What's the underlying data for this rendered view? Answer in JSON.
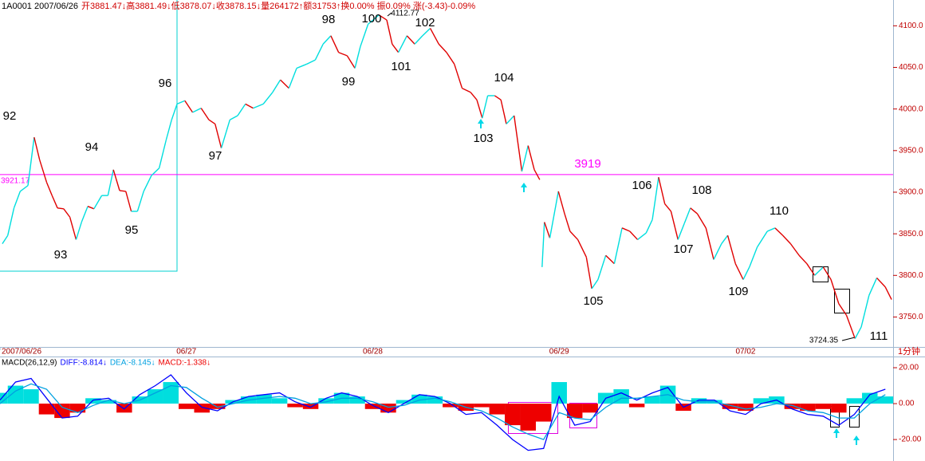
{
  "chart_data": [
    {
      "type": "line",
      "title": [
        "1A0001 2007/06/26",
        "开3881.47↓高3881.49↓低3878.07↓收3878.15↓量264172↑额31753↑换0.00%  振0.09%  涨(-3.43)-0.09%"
      ],
      "x": [
        3,
        10,
        18,
        26,
        36,
        44,
        51,
        60,
        67,
        74,
        82,
        90,
        98,
        105,
        113,
        121,
        131,
        139,
        146,
        154,
        162,
        169,
        177,
        185,
        195,
        205,
        214,
        221,
        228,
        238,
        248,
        259,
        269,
        277,
        285,
        296,
        306,
        316,
        326,
        339,
        351,
        361,
        372,
        382,
        395,
        406,
        416,
        426,
        436,
        447,
        457,
        464,
        474,
        488,
        498,
        505,
        513,
        524,
        534,
        544,
        554,
        565,
        575,
        585,
        595,
        606,
        614,
        621,
        628,
        637,
        645,
        652,
        662,
        672,
        680,
        688,
        695,
        697,
        698,
        701,
        708,
        719,
        727,
        734,
        744,
        755,
        762,
        770,
        780,
        791,
        801,
        811,
        821,
        832,
        840,
        848,
        856,
        864,
        873,
        881,
        889,
        898,
        909,
        919,
        929,
        937,
        947,
        957,
        965,
        975,
        988,
        998,
        1008,
        1018,
        1029,
        1039,
        1049,
        1060,
        1070,
        1080,
        1090,
        1101,
        1109,
        1119,
        1129,
        1140,
        1148
      ],
      "values": [
        3838,
        3848,
        3881,
        3901,
        3908,
        3966,
        3939,
        3912,
        3896,
        3881,
        3880,
        3870,
        3843,
        3864,
        3883,
        3880,
        3896,
        3896,
        3927,
        3902,
        3901,
        3877,
        3877,
        3901,
        3920,
        3929,
        3963,
        3987,
        4006,
        4010,
        3996,
        4001,
        3987,
        3982,
        3953,
        3987,
        3992,
        4006,
        4001,
        4006,
        4020,
        4035,
        4025,
        4049,
        4054,
        4059,
        4078,
        4088,
        4068,
        4064,
        4049,
        4075,
        4102,
        4113,
        4107,
        4078,
        4068,
        4088,
        4078,
        4088,
        4097,
        4078,
        4068,
        4054,
        4025,
        4020,
        4011,
        3989,
        4016,
        4016,
        4011,
        3982,
        3992,
        3925,
        3956,
        3927,
        3915,
        null,
        3810,
        3864,
        3845,
        3901,
        3874,
        3853,
        3843,
        3822,
        3784,
        3795,
        3824,
        3814,
        3857,
        3853,
        3843,
        3851,
        3867,
        3918,
        3886,
        3877,
        3843,
        3862,
        3881,
        3874,
        3857,
        3819,
        3838,
        3848,
        3814,
        3795,
        3810,
        3834,
        3853,
        3857,
        3848,
        3838,
        3824,
        3814,
        3800,
        3810,
        3795,
        3766,
        3752,
        3724,
        3738,
        3776,
        3797,
        3786,
        3771
      ],
      "up_color": "#00dede",
      "down_color": "#e00000",
      "xlim": [
        0,
        1150
      ],
      "xticks": [
        {
          "value": 0,
          "label": "2007/06/26"
        },
        {
          "value": 240,
          "label": "06/27"
        },
        {
          "value": 480,
          "label": "06/28"
        },
        {
          "value": 720,
          "label": "06/29"
        },
        {
          "value": 960,
          "label": "07/02"
        }
      ],
      "ylim": [
        3714,
        4131
      ],
      "yticks": [
        {
          "value": 3750,
          "label": "3750.0"
        },
        {
          "value": 3800,
          "label": "3800.0"
        },
        {
          "value": 3850,
          "label": "3850.0"
        },
        {
          "value": 3900,
          "label": "3900.0"
        },
        {
          "value": 3950,
          "label": "3950.0"
        },
        {
          "value": 4000,
          "label": "4000.0"
        },
        {
          "value": 4050,
          "label": "4050.0"
        },
        {
          "value": 4100,
          "label": "4100.0"
        }
      ],
      "hline": {
        "value": 3921.17,
        "label": "3921.17",
        "color": "#ff00ff"
      },
      "annotations": [
        "92",
        "93",
        "94",
        "95",
        "96",
        "97",
        "98",
        "99",
        "100",
        "101",
        "102",
        "103",
        "104",
        "105",
        "106",
        "107",
        "108",
        "109",
        "110",
        "111",
        "4112.77",
        "3724.35",
        "3919"
      ],
      "period": "1分钟"
    },
    {
      "type": "macd",
      "title": "MACD(26,12,9)",
      "x": [
        0,
        20,
        40,
        60,
        80,
        100,
        120,
        140,
        160,
        180,
        200,
        220,
        240,
        260,
        280,
        300,
        320,
        340,
        360,
        380,
        400,
        420,
        440,
        460,
        480,
        500,
        520,
        540,
        560,
        580,
        600,
        620,
        640,
        660,
        680,
        700,
        720,
        740,
        760,
        780,
        800,
        820,
        840,
        860,
        880,
        900,
        920,
        940,
        960,
        980,
        1000,
        1020,
        1040,
        1060,
        1080,
        1100,
        1120,
        1140
      ],
      "xlim": [
        0,
        1150
      ],
      "ylim": [
        -28.4,
        24.9
      ],
      "yticks": [
        {
          "value": 20,
          "label": "20.00"
        },
        {
          "value": 0,
          "label": "0.00"
        },
        {
          "value": -20,
          "label": "-20.00"
        }
      ],
      "series": [
        {
          "name": "DIFF:-8.814↓",
          "color": "#0000ff",
          "values": [
            2,
            12,
            14,
            3,
            -8,
            -7,
            2,
            3,
            -3,
            5,
            10,
            16,
            6,
            -2,
            -4,
            1,
            4,
            5,
            6,
            1,
            -2,
            3,
            6,
            4,
            -1,
            -5,
            0,
            5,
            4,
            0,
            -6,
            -5,
            -12,
            -20,
            -26,
            -25,
            4,
            -12,
            -10,
            3,
            6,
            2,
            6,
            9,
            -2,
            2,
            2,
            -4,
            -6,
            0,
            2,
            -3,
            -6,
            -7,
            -12,
            -6,
            5,
            8
          ]
        },
        {
          "name": "DEA:-8.145↓",
          "color": "#00a0e0",
          "values": [
            0,
            7,
            11,
            8,
            -2,
            -5,
            -1,
            2,
            0,
            2,
            6,
            10,
            9,
            3,
            -2,
            0,
            2,
            3,
            4,
            3,
            0,
            1,
            3,
            3,
            1,
            -2,
            -1,
            2,
            3,
            1,
            -2,
            -4,
            -8,
            -13,
            -17,
            -20,
            -5,
            -8,
            -9,
            -2,
            3,
            3,
            4,
            5,
            2,
            1,
            1,
            -1,
            -3,
            -2,
            0,
            -1,
            -4,
            -5,
            -8,
            -8,
            0,
            5
          ]
        },
        {
          "name": "MACD:-1.338↓",
          "type": "bar",
          "color": "#ee0000",
          "up_color": "#00dede",
          "values": [
            6,
            10,
            8,
            -6,
            -8,
            -5,
            3,
            2,
            -5,
            4,
            8,
            12,
            -3,
            -5,
            -3,
            2,
            4,
            5,
            3,
            -2,
            -3,
            3,
            6,
            4,
            -3,
            -5,
            2,
            5,
            4,
            -2,
            -4,
            -2,
            -6,
            -12,
            -15,
            -10,
            12,
            -8,
            -5,
            6,
            8,
            -2,
            4,
            10,
            -4,
            3,
            2,
            -3,
            -4,
            3,
            4,
            -3,
            -4,
            -3,
            -5,
            3,
            6,
            4
          ]
        }
      ]
    }
  ]
}
